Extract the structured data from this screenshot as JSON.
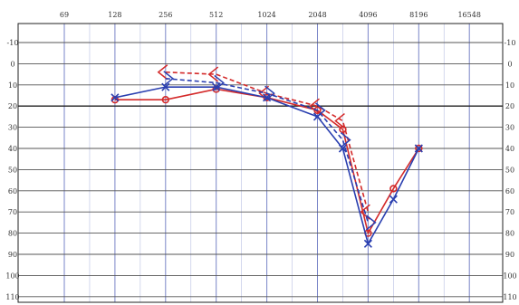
{
  "chart_data": {
    "type": "line",
    "title": "",
    "xlabel": "",
    "ylabel": "",
    "x_scale": "log2",
    "x_ticks": [
      "69",
      "128",
      "256",
      "512",
      "1024",
      "2048",
      "4096",
      "8196",
      "16548"
    ],
    "y_ticks": [
      "-10",
      "0",
      "10",
      "20",
      "30",
      "40",
      "50",
      "60",
      "70",
      "80",
      "90",
      "100",
      "110"
    ],
    "ylim": [
      -15,
      112
    ],
    "y_inverted": true,
    "grid": true,
    "legend": "none",
    "series": [
      {
        "color": "#d42a2a",
        "marker": "circle",
        "style": "solid",
        "points": [
          [
            128,
            17
          ],
          [
            256,
            17
          ],
          [
            512,
            12
          ],
          [
            1024,
            16
          ],
          [
            2048,
            22
          ],
          [
            2896,
            31
          ],
          [
            4096,
            80
          ],
          [
            5793,
            59
          ],
          [
            8196,
            40
          ]
        ]
      },
      {
        "color": "#d42a2a",
        "marker": "bracket-left",
        "style": "dashed",
        "points": [
          [
            256,
            4
          ],
          [
            512,
            5
          ],
          [
            1024,
            14
          ],
          [
            2048,
            20
          ],
          [
            2896,
            27
          ],
          [
            4096,
            70
          ]
        ]
      },
      {
        "color": "#2a3fb0",
        "marker": "x",
        "style": "solid",
        "points": [
          [
            128,
            16
          ],
          [
            256,
            11
          ],
          [
            512,
            11
          ],
          [
            1024,
            16
          ],
          [
            2048,
            25
          ],
          [
            2896,
            40
          ],
          [
            4096,
            85
          ],
          [
            5793,
            64
          ],
          [
            8196,
            40
          ]
        ]
      },
      {
        "color": "#2a3fb0",
        "marker": "bracket-right",
        "style": "dashed",
        "points": [
          [
            256,
            7
          ],
          [
            512,
            9
          ],
          [
            1024,
            14
          ],
          [
            2048,
            22
          ],
          [
            2896,
            36
          ],
          [
            4096,
            75
          ]
        ]
      }
    ]
  }
}
